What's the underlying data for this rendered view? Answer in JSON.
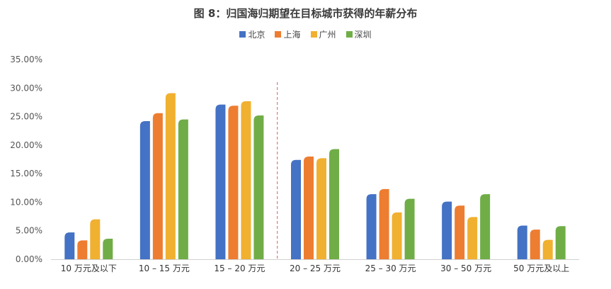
{
  "chart_data": {
    "type": "bar",
    "title": "图 8：归国海归期望在目标城市获得的年薪分布",
    "categories": [
      "10 万元及以下",
      "10 – 15 万元",
      "15 – 20 万元",
      "20 – 25 万元",
      "25 – 30 万元",
      "30 – 50 万元",
      "50 万元及以上"
    ],
    "series": [
      {
        "name": "北京",
        "color": "#4472C4",
        "values": [
          4.7,
          24.2,
          27.1,
          17.4,
          11.4,
          10.1,
          5.9
        ]
      },
      {
        "name": "上海",
        "color": "#ED7D31",
        "values": [
          3.3,
          25.6,
          26.9,
          18.0,
          12.3,
          9.4,
          5.2
        ]
      },
      {
        "name": "广州",
        "color": "#F0B030",
        "values": [
          7.0,
          29.1,
          27.7,
          17.7,
          8.2,
          7.4,
          3.4
        ]
      },
      {
        "name": "深圳",
        "color": "#70AD47",
        "values": [
          3.6,
          24.5,
          25.2,
          19.3,
          10.6,
          11.4,
          5.8
        ]
      }
    ],
    "yticks": [
      "0.00%",
      "5.00%",
      "10.00%",
      "15.00%",
      "20.00%",
      "25.00%",
      "30.00%",
      "35.00%"
    ],
    "ylim": [
      0,
      35
    ],
    "legend_position": "top-center",
    "divider": "dashed vertical line between 15 – 20 万元 and 20 – 25 万元",
    "divider_color": "#E05A5A"
  }
}
